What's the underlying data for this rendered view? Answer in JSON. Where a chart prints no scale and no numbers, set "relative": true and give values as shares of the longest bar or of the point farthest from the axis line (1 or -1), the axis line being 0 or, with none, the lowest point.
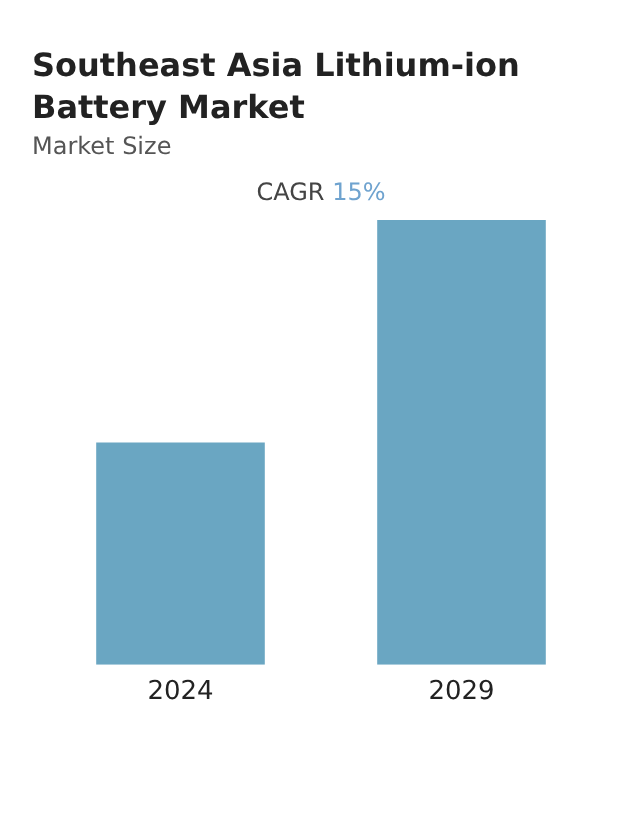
{
  "chart_data": {
    "type": "bar",
    "title": "Southeast Asia Lithium-ion Battery Market",
    "subtitle": "Market Size",
    "annotations": [
      "CAGR 15%"
    ],
    "categories": [
      "2024",
      "2029"
    ],
    "values": [
      0.5,
      1
    ],
    "color": "#6aa6c2",
    "relative": true,
    "grid": false,
    "legend": false
  }
}
